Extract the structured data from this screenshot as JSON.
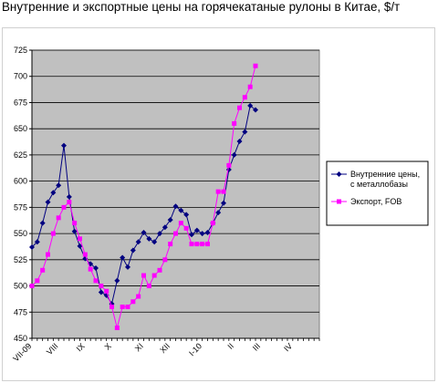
{
  "title": "Внутренние и экспортные цены на горячекатаные рулоны в Китае, $/т",
  "chart_data": {
    "type": "line",
    "title": "Внутренние и экспортные цены на горячекатаные рулоны в Китае, $/т",
    "ylim": [
      450,
      725
    ],
    "yticks": [
      450,
      475,
      500,
      525,
      550,
      575,
      600,
      625,
      650,
      675,
      700,
      725
    ],
    "xtick_labels": [
      "VII-09",
      "VIII",
      "IX",
      "X",
      "XI",
      "XII",
      "I-10",
      "II",
      "III",
      "IV"
    ],
    "xtick_index": [
      0,
      5,
      10,
      15,
      21,
      26,
      32,
      38,
      43,
      49
    ],
    "n_points": 55,
    "grid": true,
    "legend_position": "right",
    "plot_background": "#c0c0c0",
    "series": [
      {
        "name": "Внутренние цены, с металлобазы",
        "color": "#000080",
        "marker": "diamond",
        "values": [
          537,
          542,
          560,
          580,
          589,
          596,
          634,
          585,
          552,
          538,
          526,
          521,
          517,
          494,
          491,
          483,
          505,
          527,
          518,
          534,
          542,
          551,
          545,
          542,
          550,
          556,
          563,
          576,
          572,
          568,
          549,
          553,
          550,
          551,
          560,
          570,
          579,
          611,
          625,
          638,
          647,
          672,
          668
        ]
      },
      {
        "name": "Экспорт, FOB",
        "color": "#ff00ff",
        "marker": "square",
        "values": [
          500,
          505,
          515,
          530,
          550,
          565,
          575,
          580,
          560,
          545,
          530,
          516,
          505,
          500,
          495,
          480,
          460,
          480,
          480,
          485,
          490,
          510,
          500,
          510,
          515,
          525,
          540,
          550,
          560,
          555,
          540,
          540,
          540,
          540,
          560,
          590,
          590,
          615,
          655,
          670,
          680,
          690,
          710
        ]
      }
    ]
  }
}
